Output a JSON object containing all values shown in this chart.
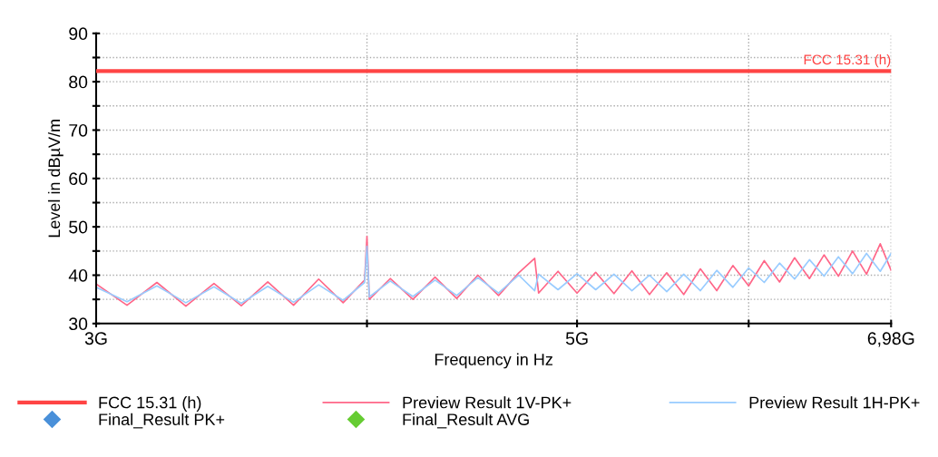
{
  "chart_data": {
    "type": "line",
    "xlabel": "Frequency in Hz",
    "ylabel": "Level in dBµV/m",
    "log": "x",
    "xlim": [
      3,
      6.98
    ],
    "xticks": [
      {
        "value": 3,
        "label": "3G"
      },
      {
        "value": 4,
        "label": null
      },
      {
        "value": 5,
        "label": "5G"
      },
      {
        "value": 6,
        "label": null
      },
      {
        "value": 6.98,
        "label": "6,98G"
      }
    ],
    "ylim": [
      30,
      90
    ],
    "yticks": [
      30,
      {
        "value": 35,
        "label": null
      },
      40,
      {
        "value": 45,
        "label": null
      },
      50,
      {
        "value": 55,
        "label": null
      },
      60,
      {
        "value": 65,
        "label": null
      },
      70,
      {
        "value": 75,
        "label": null
      },
      80,
      {
        "value": 85,
        "label": null
      },
      90
    ],
    "grid": true,
    "legend": "bottom",
    "line_style": "solid",
    "ref_lines": [
      {
        "axis": "y",
        "value": 82.2,
        "label": "FCC 15.31 (h)",
        "color": "#ff4444"
      }
    ],
    "x": [
      3.0,
      3.1,
      3.2,
      3.3,
      3.4,
      3.5,
      3.6,
      3.7,
      3.8,
      3.9,
      3.99,
      4.0,
      4.01,
      4.1,
      4.2,
      4.3,
      4.4,
      4.5,
      4.6,
      4.7,
      4.78,
      4.8,
      4.9,
      5.0,
      5.1,
      5.2,
      5.3,
      5.4,
      5.5,
      5.6,
      5.7,
      5.8,
      5.9,
      6.0,
      6.1,
      6.2,
      6.3,
      6.4,
      6.5,
      6.6,
      6.7,
      6.8,
      6.9,
      6.98
    ],
    "series": [
      {
        "name": "Preview Result 1V-PK+",
        "color": "#ff6688",
        "values": [
          38.2,
          33.8,
          38.5,
          33.6,
          38.3,
          33.7,
          38.6,
          33.8,
          39.2,
          34.3,
          39,
          48,
          35,
          39.3,
          35,
          39.6,
          35.2,
          40,
          35.8,
          40.5,
          43.5,
          36.3,
          40.8,
          36.3,
          40.6,
          36.2,
          40.9,
          36,
          40.5,
          36,
          41.3,
          36.8,
          42,
          37.8,
          43,
          38.6,
          43.6,
          39.3,
          44.2,
          39.8,
          45,
          40.2,
          46.5,
          41
        ]
      },
      {
        "name": "Preview Result 1H-PK+",
        "color": "#99ccff",
        "values": [
          37.5,
          34.5,
          37.8,
          34.3,
          37.6,
          34.2,
          37.7,
          34.4,
          38,
          34.8,
          38.5,
          46,
          35.5,
          38.8,
          35.6,
          39,
          35.8,
          39.5,
          36.3,
          40,
          36.8,
          40.2,
          37,
          40.3,
          37,
          40.2,
          36.8,
          40,
          36.6,
          40.2,
          36.8,
          41,
          37.5,
          41.5,
          38.5,
          42.5,
          39.2,
          43.2,
          39.8,
          43.8,
          40.3,
          44.5,
          40.8,
          44.5
        ]
      },
      {
        "name": "Final_Result PK+",
        "type": "scatter",
        "marker": "diamond",
        "color": "#4a90d9",
        "values": [
          null,
          null,
          null,
          null,
          null,
          null,
          null,
          null,
          null,
          null,
          null,
          null,
          null,
          null,
          null,
          null,
          null,
          null,
          null,
          null,
          null,
          null,
          null,
          null,
          null,
          null,
          null,
          null,
          null,
          null,
          null,
          null,
          null,
          null,
          null,
          null,
          null,
          null,
          null,
          null,
          null,
          null,
          null,
          null
        ]
      },
      {
        "name": "Final_Result AVG",
        "type": "scatter",
        "marker": "diamond",
        "color": "#66cc33",
        "values": [
          null,
          null,
          null,
          null,
          null,
          null,
          null,
          null,
          null,
          null,
          null,
          null,
          null,
          null,
          null,
          null,
          null,
          null,
          null,
          null,
          null,
          null,
          null,
          null,
          null,
          null,
          null,
          null,
          null,
          null,
          null,
          null,
          null,
          null,
          null,
          null,
          null,
          null,
          null,
          null,
          null,
          null,
          null,
          null
        ]
      }
    ]
  }
}
